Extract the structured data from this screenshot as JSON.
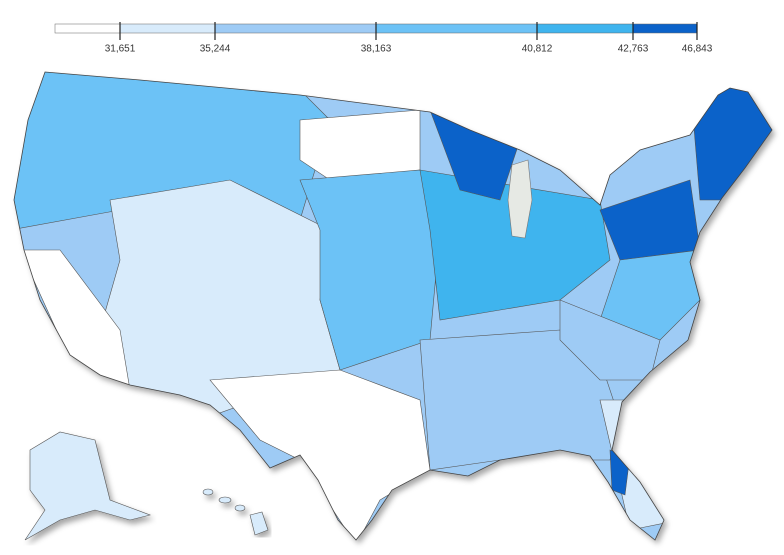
{
  "legend": {
    "breaks": [
      {
        "value": 31651,
        "label": "31,651"
      },
      {
        "value": 35244,
        "label": "35,244"
      },
      {
        "value": 38163,
        "label": "38,163"
      },
      {
        "value": 40812,
        "label": "40,812"
      },
      {
        "value": 42763,
        "label": "42,763"
      },
      {
        "value": 46843,
        "label": "46,843"
      }
    ],
    "colors": [
      "#ffffff",
      "#d8ebfb",
      "#9ecbf5",
      "#6cc2f6",
      "#3fb4ee",
      "#0b62c9"
    ]
  }
}
